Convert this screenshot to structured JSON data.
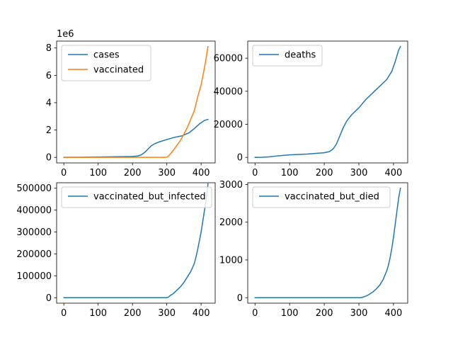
{
  "chart_data": [
    {
      "type": "line",
      "xlim": [
        -21,
        441
      ],
      "ylim": [
        -405000,
        8505000
      ],
      "xticks": [
        0,
        100,
        200,
        300,
        400
      ],
      "yticks": [
        0,
        2000000,
        4000000,
        6000000,
        8000000
      ],
      "ytick_labels": [
        "0",
        "2",
        "4",
        "6",
        "8"
      ],
      "y_offset_label": "1e6",
      "legend_position": "top-left",
      "series": [
        {
          "name": "cases",
          "color": "#1f77b4",
          "x": [
            0,
            50,
            100,
            150,
            200,
            215,
            225,
            235,
            245,
            255,
            265,
            280,
            300,
            320,
            345,
            365,
            380,
            395,
            410,
            420
          ],
          "y": [
            0,
            10000,
            30000,
            50000,
            70000,
            100000,
            180000,
            350000,
            600000,
            850000,
            1000000,
            1150000,
            1300000,
            1450000,
            1580000,
            1800000,
            2100000,
            2450000,
            2700000,
            2780000
          ]
        },
        {
          "name": "vaccinated",
          "color": "#ff7f0e",
          "x": [
            0,
            100,
            200,
            295,
            300,
            305,
            312,
            320,
            330,
            340,
            350,
            360,
            370,
            380,
            385,
            392,
            400,
            407,
            413,
            418,
            420
          ],
          "y": [
            0,
            0,
            0,
            0,
            10000,
            100000,
            300000,
            550000,
            900000,
            1250000,
            1700000,
            2200000,
            2800000,
            3400000,
            3900000,
            4600000,
            5300000,
            6200000,
            7000000,
            7800000,
            8100000
          ]
        }
      ]
    },
    {
      "type": "line",
      "xlim": [
        -21,
        441
      ],
      "ylim": [
        -3350,
        70350
      ],
      "xticks": [
        0,
        100,
        200,
        300,
        400
      ],
      "yticks": [
        0,
        20000,
        40000,
        60000
      ],
      "ytick_labels": [
        "0",
        "20000",
        "40000",
        "60000"
      ],
      "legend_position": "top-left",
      "series": [
        {
          "name": "deaths",
          "color": "#1f77b4",
          "x": [
            0,
            20,
            40,
            60,
            100,
            150,
            200,
            215,
            225,
            235,
            245,
            255,
            265,
            280,
            300,
            320,
            340,
            360,
            380,
            395,
            405,
            415,
            420
          ],
          "y": [
            0,
            100,
            300,
            800,
            1500,
            2000,
            2800,
            3500,
            5000,
            8000,
            13000,
            18000,
            22000,
            26000,
            30000,
            35000,
            39000,
            43000,
            47000,
            52000,
            58000,
            65000,
            67000
          ]
        }
      ]
    },
    {
      "type": "line",
      "xlim": [
        -21,
        441
      ],
      "ylim": [
        -25000,
        525000
      ],
      "xticks": [
        0,
        100,
        200,
        300,
        400
      ],
      "yticks": [
        0,
        100000,
        200000,
        300000,
        400000,
        500000
      ],
      "ytick_labels": [
        "0",
        "100000",
        "200000",
        "300000",
        "400000",
        "500000"
      ],
      "legend_position": "top-left",
      "series": [
        {
          "name": "vaccinated_but_infected",
          "color": "#1f77b4",
          "x": [
            0,
            100,
            200,
            300,
            305,
            310,
            320,
            330,
            340,
            350,
            360,
            370,
            380,
            385,
            390,
            395,
            400,
            405,
            410,
            415,
            420
          ],
          "y": [
            0,
            0,
            0,
            0,
            3000,
            10000,
            20000,
            35000,
            50000,
            70000,
            95000,
            120000,
            155000,
            185000,
            220000,
            260000,
            300000,
            350000,
            400000,
            450000,
            520000
          ]
        }
      ]
    },
    {
      "type": "line",
      "xlim": [
        -21,
        441
      ],
      "ylim": [
        -145,
        3045
      ],
      "xticks": [
        0,
        100,
        200,
        300,
        400
      ],
      "yticks": [
        0,
        1000,
        2000,
        3000
      ],
      "ytick_labels": [
        "0",
        "1000",
        "2000",
        "3000"
      ],
      "legend_position": "top-left",
      "series": [
        {
          "name": "vaccinated_but_died",
          "color": "#1f77b4",
          "x": [
            0,
            100,
            200,
            305,
            310,
            320,
            330,
            340,
            350,
            360,
            370,
            380,
            385,
            390,
            395,
            400,
            405,
            410,
            415,
            420
          ],
          "y": [
            0,
            0,
            0,
            0,
            10,
            40,
            90,
            150,
            230,
            330,
            480,
            700,
            850,
            1050,
            1300,
            1600,
            1950,
            2300,
            2650,
            2900
          ]
        }
      ]
    }
  ]
}
